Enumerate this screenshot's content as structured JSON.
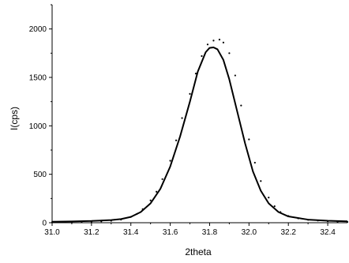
{
  "chart_data": {
    "type": "scatter",
    "title": "",
    "xlabel": "2theta",
    "ylabel": "I(cps)",
    "xlim": [
      31.0,
      32.5
    ],
    "ylim": [
      0,
      2250
    ],
    "x_ticks": [
      31.0,
      31.2,
      31.4,
      31.6,
      31.8,
      32.0,
      32.2,
      32.4
    ],
    "x_tick_labels": [
      "31.0",
      "31.2",
      "31.4",
      "31.6",
      "31.8",
      "32.0",
      "32.2",
      "32.4"
    ],
    "y_ticks": [
      0,
      500,
      1000,
      1500,
      2000
    ],
    "y_tick_labels": [
      "0",
      "500",
      "1000",
      "1500",
      "2000"
    ],
    "grid": false,
    "legend": "none",
    "series": [
      {
        "style": "dotted",
        "color": "#000000",
        "points": [
          [
            31.0,
            5
          ],
          [
            31.05,
            6
          ],
          [
            31.1,
            7
          ],
          [
            31.15,
            9
          ],
          [
            31.2,
            11
          ],
          [
            31.25,
            14
          ],
          [
            31.3,
            20
          ],
          [
            31.35,
            32
          ],
          [
            31.4,
            60
          ],
          [
            31.43,
            90
          ],
          [
            31.46,
            140
          ],
          [
            31.5,
            230
          ],
          [
            31.53,
            320
          ],
          [
            31.56,
            450
          ],
          [
            31.6,
            640
          ],
          [
            31.63,
            850
          ],
          [
            31.66,
            1080
          ],
          [
            31.7,
            1330
          ],
          [
            31.73,
            1540
          ],
          [
            31.76,
            1720
          ],
          [
            31.79,
            1840
          ],
          [
            31.82,
            1880
          ],
          [
            31.85,
            1890
          ],
          [
            31.87,
            1860
          ],
          [
            31.9,
            1750
          ],
          [
            31.93,
            1520
          ],
          [
            31.96,
            1210
          ],
          [
            32.0,
            860
          ],
          [
            32.03,
            620
          ],
          [
            32.06,
            430
          ],
          [
            32.1,
            260
          ],
          [
            32.13,
            170
          ],
          [
            32.16,
            110
          ],
          [
            32.2,
            70
          ],
          [
            32.25,
            45
          ],
          [
            32.3,
            30
          ],
          [
            32.35,
            22
          ],
          [
            32.4,
            15
          ],
          [
            32.45,
            10
          ],
          [
            32.5,
            8
          ]
        ]
      },
      {
        "style": "solid",
        "color": "#000000",
        "points": [
          [
            31.0,
            10
          ],
          [
            31.1,
            13
          ],
          [
            31.2,
            18
          ],
          [
            31.3,
            28
          ],
          [
            31.35,
            38
          ],
          [
            31.4,
            60
          ],
          [
            31.45,
            110
          ],
          [
            31.5,
            200
          ],
          [
            31.55,
            350
          ],
          [
            31.6,
            580
          ],
          [
            31.65,
            890
          ],
          [
            31.7,
            1250
          ],
          [
            31.74,
            1560
          ],
          [
            31.78,
            1760
          ],
          [
            31.8,
            1805
          ],
          [
            31.82,
            1810
          ],
          [
            31.84,
            1790
          ],
          [
            31.87,
            1680
          ],
          [
            31.9,
            1480
          ],
          [
            31.94,
            1150
          ],
          [
            31.98,
            820
          ],
          [
            32.02,
            530
          ],
          [
            32.06,
            330
          ],
          [
            32.1,
            200
          ],
          [
            32.15,
            110
          ],
          [
            32.2,
            65
          ],
          [
            32.3,
            32
          ],
          [
            32.4,
            20
          ],
          [
            32.5,
            14
          ]
        ]
      }
    ]
  }
}
